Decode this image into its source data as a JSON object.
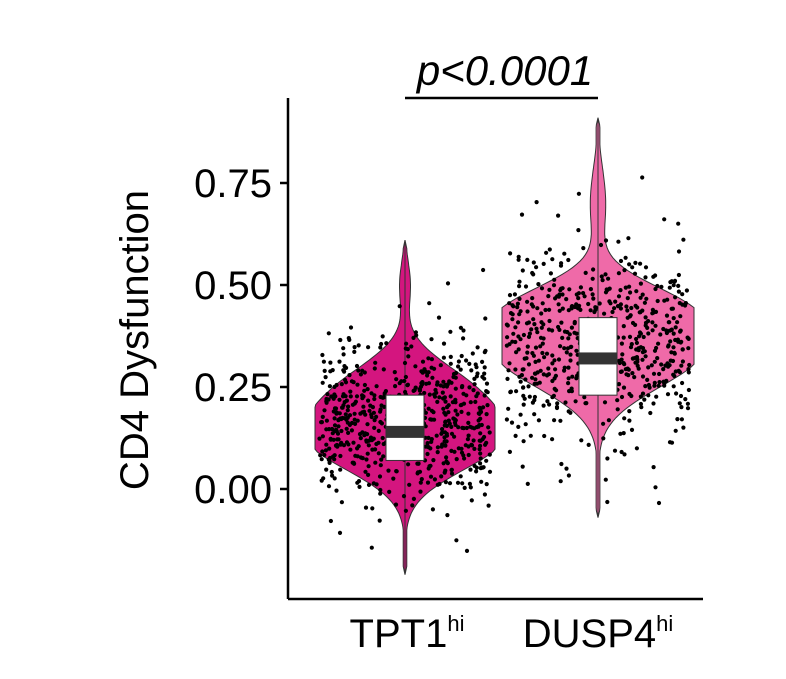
{
  "chart_data": {
    "type": "violin",
    "ylabel": "CD4 Dysfunction",
    "ylim": [
      -0.3,
      0.92
    ],
    "yticks": [
      0.0,
      0.25,
      0.5,
      0.75
    ],
    "ytick_labels": [
      "0.00",
      "0.25",
      "0.50",
      "0.75"
    ],
    "annotation": "p<0.0001",
    "grid": false,
    "legend": "none",
    "groups": [
      {
        "label_main": "TPT1",
        "label_sup": "hi",
        "color": "#d4157f",
        "range": [
          -0.21,
          0.61
        ],
        "box": {
          "q1": 0.07,
          "median": 0.14,
          "q3": 0.23
        },
        "n_points": 650
      },
      {
        "label_main": "DUSP4",
        "label_sup": "hi",
        "color": "#ef6aa8",
        "range": [
          -0.07,
          0.91
        ],
        "box": {
          "q1": 0.23,
          "median": 0.32,
          "q3": 0.42
        },
        "n_points": 620
      }
    ]
  }
}
